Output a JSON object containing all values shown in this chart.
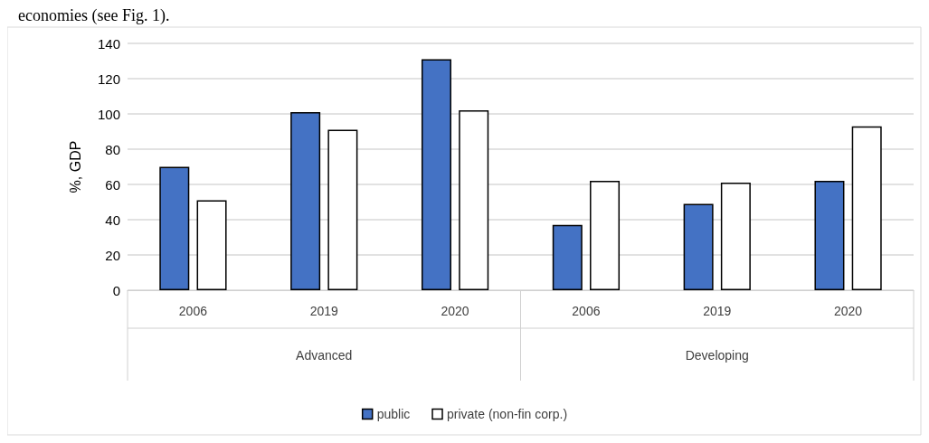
{
  "chart_data": {
    "type": "bar",
    "ylabel": "%, GDP",
    "categories": [
      "2006",
      "2019",
      "2020",
      "2006",
      "2019",
      "2020"
    ],
    "series": [
      {
        "name": "public",
        "color": "#4472c4",
        "values": [
          70,
          101,
          131,
          37,
          49,
          62
        ]
      },
      {
        "name": "private (non-fin corp.)",
        "color": "#ffffff",
        "values": [
          51,
          91,
          102,
          62,
          61,
          93
        ]
      }
    ],
    "annotations": [
      "economies (see Fig. 1).",
      "Advanced",
      "Developing"
    ],
    "ylim": [
      0,
      140
    ],
    "yticks": [
      0,
      20,
      40,
      60,
      80,
      100,
      120,
      140
    ],
    "grid": "y",
    "legend": "bottom"
  }
}
